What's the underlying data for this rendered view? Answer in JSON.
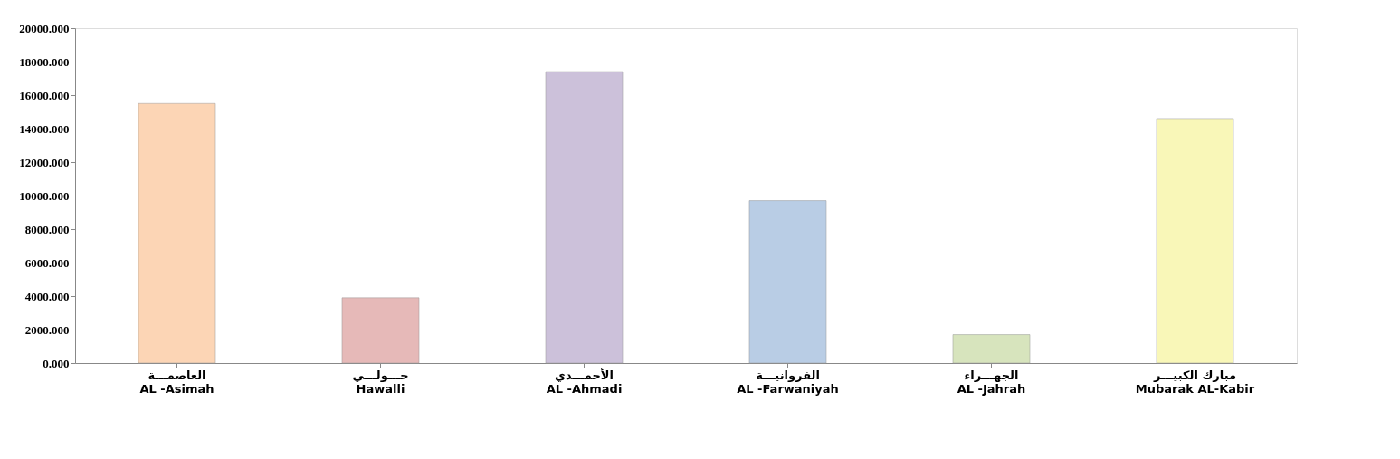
{
  "chart_data": {
    "type": "bar",
    "categories": [
      "العاصمـــة\nAL -Asimah",
      "حـــولـــي\nHawalli",
      "الأحمـــدي\nAL -Ahmadi",
      "الفروانيـــة\nAL -Farwaniyah",
      "الجهـــراء\nAL -Jahrah",
      "مبارك الكبيـــر\nMubarak AL-Kabir"
    ],
    "values": [
      15500,
      3900,
      17400,
      9700,
      1700,
      14600
    ],
    "colors": [
      "#fcd5b5",
      "#e6b9b8",
      "#ccc1da",
      "#b9cde5",
      "#d7e4bd",
      "#f9f7b8"
    ],
    "ylim": [
      0,
      20000
    ],
    "yticks": [
      {
        "value": 0,
        "label": "0.000"
      },
      {
        "value": 2000,
        "label": "2000.000"
      },
      {
        "value": 4000,
        "label": "4000.000"
      },
      {
        "value": 6000,
        "label": "6000.000"
      },
      {
        "value": 8000,
        "label": "8000.000"
      },
      {
        "value": 10000,
        "label": "10000.000"
      },
      {
        "value": 12000,
        "label": "12000.000"
      },
      {
        "value": 14000,
        "label": "14000.000"
      },
      {
        "value": 16000,
        "label": "16000.000"
      },
      {
        "value": 18000,
        "label": "18000.000"
      },
      {
        "value": 20000,
        "label": "20000.000"
      }
    ],
    "grid": false
  }
}
